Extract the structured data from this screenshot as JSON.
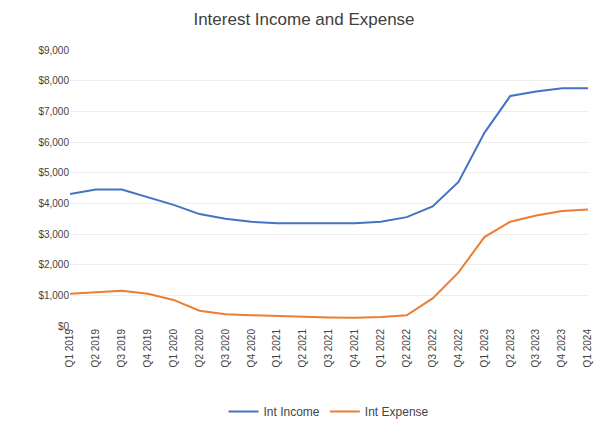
{
  "chart_data": {
    "type": "line",
    "title": "Interest Income and Expense",
    "categories": [
      "Q1 2019",
      "Q2 2019",
      "Q3 2019",
      "Q4 2019",
      "Q1 2020",
      "Q2 2020",
      "Q3 2020",
      "Q4 2020",
      "Q1 2021",
      "Q2 2021",
      "Q3 2021",
      "Q4 2021",
      "Q1 2022",
      "Q2 2022",
      "Q3 2022",
      "Q4 2022",
      "Q1 2023",
      "Q2 2023",
      "Q3 2023",
      "Q4 2023",
      "Q1 2024"
    ],
    "series": [
      {
        "name": "Int Income",
        "color": "#4472C4",
        "values": [
          4300,
          4450,
          4450,
          4200,
          3950,
          3650,
          3500,
          3400,
          3350,
          3350,
          3350,
          3350,
          3400,
          3550,
          3900,
          4700,
          6300,
          7500,
          7650,
          7750,
          7750
        ]
      },
      {
        "name": "Int Expense",
        "color": "#ED7D31",
        "values": [
          1050,
          1100,
          1150,
          1050,
          850,
          500,
          380,
          350,
          320,
          290,
          280,
          270,
          290,
          350,
          900,
          1750,
          2900,
          3400,
          3600,
          3750,
          3800
        ]
      }
    ],
    "ylim": [
      0,
      9000
    ],
    "yticks": [
      {
        "value": 0,
        "label": "$0"
      },
      {
        "value": 1000,
        "label": "$1,000"
      },
      {
        "value": 2000,
        "label": "$2,000"
      },
      {
        "value": 3000,
        "label": "$3,000"
      },
      {
        "value": 4000,
        "label": "$4,000"
      },
      {
        "value": 5000,
        "label": "$5,000"
      },
      {
        "value": 6000,
        "label": "$6,000"
      },
      {
        "value": 7000,
        "label": "$7,000"
      },
      {
        "value": 8000,
        "label": "$8,000"
      },
      {
        "value": 9000,
        "label": "$9,000"
      }
    ],
    "grid": true,
    "legend": "bottom"
  }
}
